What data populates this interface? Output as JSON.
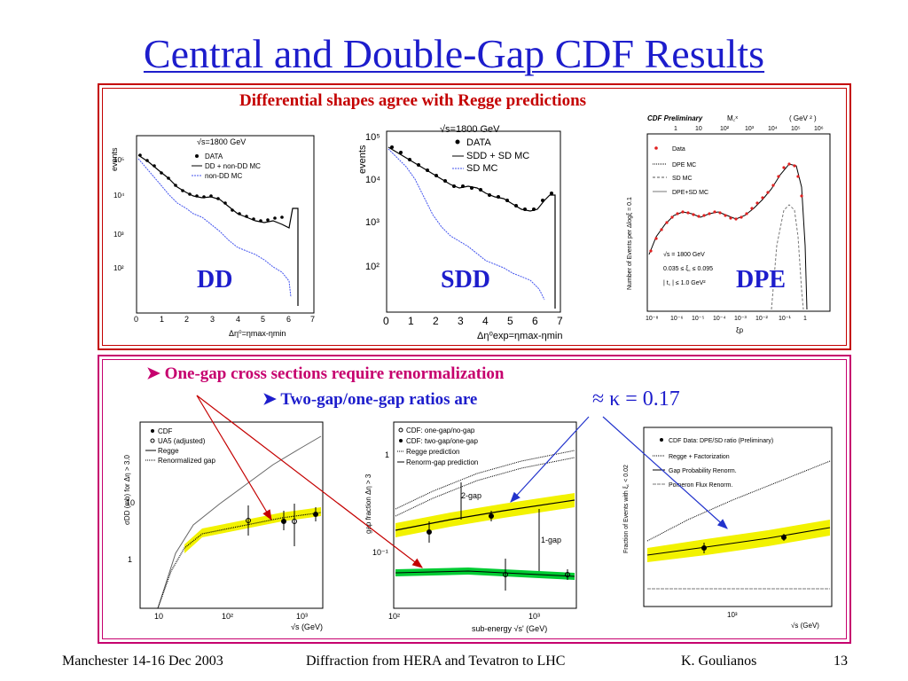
{
  "slide": {
    "title": "Central and Double-Gap CDF Results",
    "top_box": {
      "caption": "Differential shapes agree with Regge predictions",
      "plots": {
        "dd": {
          "label": "DD",
          "ylabel": "events",
          "header": "√s=1800 GeV",
          "legend": [
            "DATA",
            "DD + non-DD MC",
            "non-DD MC"
          ],
          "xlabel": "Δη⁰=ηmax-ηmin",
          "xticks": [
            "0",
            "1",
            "2",
            "3",
            "4",
            "5",
            "6",
            "7"
          ],
          "yticks": [
            "10⁵",
            "10⁴",
            "10³",
            "10²"
          ]
        },
        "sdd": {
          "label": "SDD",
          "ylabel": "events",
          "header": "√s=1800 GeV",
          "legend": [
            "DATA",
            "SDD + SD MC",
            "SD MC"
          ],
          "xlabel": "Δη⁰exp=ηmax-ηmin",
          "xticks": [
            "0",
            "1",
            "2",
            "3",
            "4",
            "5",
            "6",
            "7"
          ],
          "yticks": [
            "10⁵",
            "10⁴",
            "10³",
            "10²"
          ]
        },
        "dpe": {
          "label": "DPE",
          "header_left": "CDF Preliminary",
          "header_mid": "M꜀ˣ",
          "header_right": "( GeV ² )",
          "top_ticks": [
            "1",
            "10",
            "10²",
            "10³",
            "10⁴",
            "10⁵",
            "10⁶"
          ],
          "ylabel": "Number of Events per Δlogξ = 0.1",
          "legend": [
            "Data",
            "DPE MC",
            "SD MC",
            "DPE+SD MC"
          ],
          "cuts": [
            "√s = 1800 GeV",
            "0.035 ≤ ξ꜀ ≤ 0.095",
            "| t꜀ | ≤ 1.0 GeV²"
          ],
          "xticks": [
            "10⁻⁸",
            "10⁻⁶",
            "10⁻⁵",
            "10⁻⁴",
            "10⁻³",
            "10⁻²",
            "10⁻¹",
            "1"
          ],
          "xlabel": "ξp"
        }
      }
    },
    "bottom_box": {
      "bullet1": "One-gap cross sections require renormalization",
      "bullet2": "Two-gap/one-gap ratios are",
      "formula": "≈ κ = 0.17",
      "plots": {
        "xsec": {
          "ylabel": "σDD (mb) for Δη > 3.0",
          "legend": [
            "CDF",
            "UA5 (adjusted)",
            "Regge",
            "Renormalized gap"
          ],
          "xticks": [
            "10",
            "10²",
            "10³"
          ],
          "yticks": [
            "10",
            "1"
          ],
          "xlabel": "√s (GeV)"
        },
        "gapfrac": {
          "ylabel": "gap fraction Δη > 3",
          "legend": [
            "CDF: one-gap/no-gap",
            "CDF: two-gap/one-gap",
            "Regge prediction",
            "Renorm-gap prediction"
          ],
          "annotations": [
            "2-gap",
            "1-gap"
          ],
          "xticks": [
            "10²",
            "10³"
          ],
          "yticks": [
            "1",
            "10⁻¹"
          ],
          "xlabel": "sub-energy √s' (GeV)"
        },
        "ratio": {
          "ylabel": "Fraction of Events with ξ꜀ < 0.02",
          "legend": [
            "CDF Data: DPE/SD ratio (Preliminary)",
            "Regge + Factorization",
            "Gap Probability Renorm.",
            "Pomeron Flux Renorm."
          ],
          "xticks": [
            "10³"
          ],
          "xlabel": "√s (GeV)"
        }
      }
    },
    "footer": {
      "left": "Manchester 14-16 Dec 2003",
      "center": "Diffraction from HERA and Tevatron to LHC",
      "author": "K. Goulianos",
      "page": "13"
    },
    "colors": {
      "title": "#1d1dcc",
      "top_frame": "#c40000",
      "bottom_frame": "#c6006e",
      "band_yellow": "#f2f200",
      "band_green": "#00cc33",
      "arrow_red": "#c40000",
      "arrow_blue": "#2233cc"
    }
  }
}
